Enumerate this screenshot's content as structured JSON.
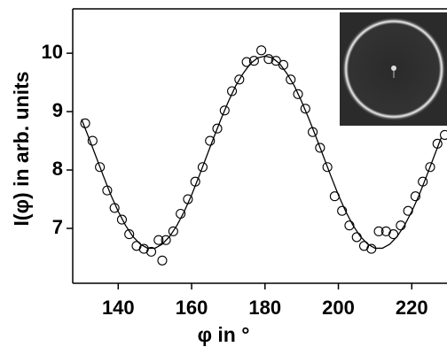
{
  "chart_data": {
    "type": "scatter",
    "x_label": "φ in °",
    "y_label": "I(φ) in arb. units",
    "xlim": [
      127.6,
      229.6
    ],
    "ylim": [
      6.06,
      10.76
    ],
    "xticks": [
      140,
      160,
      180,
      200,
      220
    ],
    "yticks": [
      7,
      8,
      9,
      10
    ],
    "color": "#000000",
    "points": {
      "x": [
        131,
        133,
        135,
        137,
        139,
        141,
        143,
        145,
        147,
        149,
        151,
        152,
        153,
        155,
        157,
        159,
        161,
        163,
        165,
        167,
        169,
        171,
        173,
        175,
        177,
        179,
        181,
        183,
        185,
        187,
        189,
        191,
        193,
        195,
        197,
        199,
        201,
        203,
        205,
        207,
        209,
        211,
        213,
        215,
        217,
        219,
        221,
        223,
        225,
        227,
        229
      ],
      "y": [
        8.8,
        8.5,
        8.05,
        7.65,
        7.35,
        7.15,
        6.9,
        6.7,
        6.65,
        6.6,
        6.8,
        6.45,
        6.8,
        6.95,
        7.25,
        7.5,
        7.8,
        8.05,
        8.5,
        8.71,
        9.02,
        9.35,
        9.55,
        9.85,
        9.87,
        10.05,
        9.9,
        9.87,
        9.8,
        9.55,
        9.3,
        9.05,
        8.65,
        8.38,
        8.05,
        7.55,
        7.3,
        7.05,
        6.85,
        6.7,
        6.65,
        6.95,
        6.95,
        6.9,
        7.05,
        7.3,
        7.55,
        7.8,
        8.05,
        8.45,
        8.6
      ]
    },
    "fit": {
      "x": [
        130,
        132,
        134,
        136,
        138,
        140,
        142,
        144,
        146,
        148,
        150,
        152,
        154,
        156,
        158,
        160,
        162,
        164,
        166,
        168,
        170,
        172,
        174,
        176,
        178,
        180,
        182,
        184,
        186,
        188,
        190,
        192,
        194,
        196,
        198,
        200,
        202,
        204,
        206,
        208,
        210,
        212,
        214,
        216,
        218,
        220,
        222,
        224,
        226,
        228
      ],
      "y": [
        8.87,
        8.55,
        8.22,
        7.89,
        7.57,
        7.29,
        7.05,
        6.86,
        6.73,
        6.66,
        6.66,
        6.73,
        6.86,
        7.05,
        7.29,
        7.57,
        7.89,
        8.22,
        8.55,
        8.87,
        9.17,
        9.44,
        9.65,
        9.82,
        9.92,
        9.95,
        9.92,
        9.82,
        9.65,
        9.44,
        9.17,
        8.87,
        8.55,
        8.22,
        7.89,
        7.57,
        7.29,
        7.05,
        6.86,
        6.73,
        6.66,
        6.66,
        6.73,
        6.86,
        7.05,
        7.29,
        7.57,
        7.89,
        8.22,
        8.55
      ]
    }
  }
}
